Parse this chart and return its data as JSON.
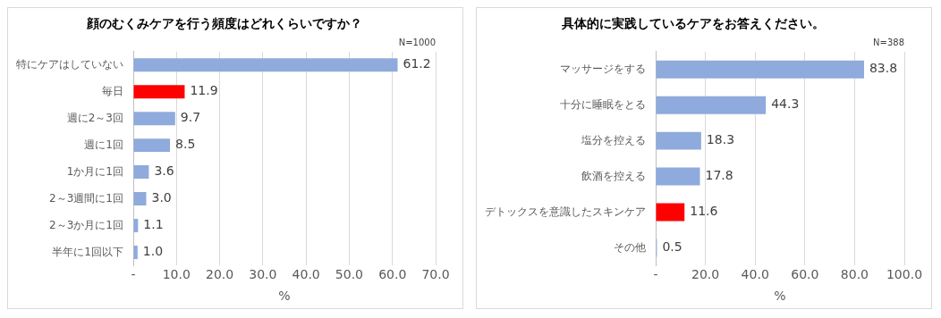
{
  "chart_data": [
    {
      "type": "bar",
      "orientation": "horizontal",
      "title": "顔のむくみケアを行う頻度はどれくらいですか？",
      "annotations": [
        "N=1000"
      ],
      "xlabel": "%",
      "categories": [
        "特にケアはしていない",
        "毎日",
        "週に2～3回",
        "週に1回",
        "1か月に1回",
        "2～3週間に1回",
        "2～3か月に1回",
        "半年に1回以下"
      ],
      "values": [
        61.2,
        11.9,
        9.7,
        8.5,
        3.6,
        3.0,
        1.1,
        1.0
      ],
      "colors": [
        "#8faadc",
        "#ff0000",
        "#8faadc",
        "#8faadc",
        "#8faadc",
        "#8faadc",
        "#8faadc",
        "#8faadc"
      ],
      "xlim": [
        0,
        70
      ],
      "xticks": [
        {
          "value": 0,
          "label": "-"
        },
        {
          "value": 10,
          "label": "10.0"
        },
        {
          "value": 20,
          "label": "20.0"
        },
        {
          "value": 30,
          "label": "30.0"
        },
        {
          "value": 40,
          "label": "40.0"
        },
        {
          "value": 50,
          "label": "50.0"
        },
        {
          "value": 60,
          "label": "60.0"
        },
        {
          "value": 70,
          "label": "70.0"
        }
      ],
      "value_labels": [
        "61.2",
        "11.9",
        "9.7",
        "8.5",
        "3.6",
        "3.0",
        "1.1",
        "1.0"
      ],
      "grid": "x",
      "legend": false
    },
    {
      "type": "bar",
      "orientation": "horizontal",
      "title": "具体的に実践しているケアをお答えください。",
      "annotations": [
        "N=388"
      ],
      "xlabel": "%",
      "categories": [
        "マッサージをする",
        "十分に睡眠をとる",
        "塩分を控える",
        "飲酒を控える",
        "デトックスを意識したスキンケア",
        "その他"
      ],
      "values": [
        83.8,
        44.3,
        18.3,
        17.8,
        11.6,
        0.5
      ],
      "colors": [
        "#8faadc",
        "#8faadc",
        "#8faadc",
        "#8faadc",
        "#ff0000",
        "#8faadc"
      ],
      "xlim": [
        0,
        100
      ],
      "xticks": [
        {
          "value": 0,
          "label": "-"
        },
        {
          "value": 20,
          "label": "20.0"
        },
        {
          "value": 40,
          "label": "40.0"
        },
        {
          "value": 60,
          "label": "60.0"
        },
        {
          "value": 80,
          "label": "80.0"
        },
        {
          "value": 100,
          "label": "100.0"
        }
      ],
      "value_labels": [
        "83.8",
        "44.3",
        "18.3",
        "17.8",
        "11.6",
        "0.5"
      ],
      "grid": "x",
      "legend": false
    }
  ]
}
